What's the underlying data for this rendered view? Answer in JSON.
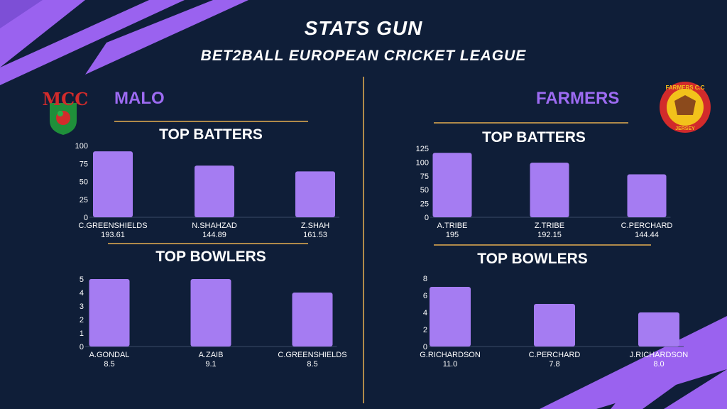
{
  "header": {
    "title": "STATS GUN",
    "subtitle": "BET2BALL EUROPEAN CRICKET LEAGUE"
  },
  "teams": [
    {
      "name": "MALO",
      "logo_text": "MCC"
    },
    {
      "name": "FARMERS",
      "logo_text_top": "FARMERS C.C",
      "logo_text_bottom": "JERSEY"
    }
  ],
  "colors": {
    "background": "#0f1e38",
    "bar": "#a57cf2",
    "accent": "#9d6bf2",
    "gold": "#b08a4a",
    "decor": "#9a62ef"
  },
  "chart_data": [
    {
      "type": "bar",
      "title": "TOP BATTERS",
      "team": "MALO",
      "categories": [
        "C.GREENSHIELDS",
        "N.SHAHZAD",
        "Z.SHAH"
      ],
      "values": [
        92,
        72,
        64
      ],
      "sublabels": [
        "193.61",
        "144.89",
        "161.53"
      ],
      "ylim": [
        0,
        100
      ],
      "yticks": [
        0,
        25,
        50,
        75,
        100
      ]
    },
    {
      "type": "bar",
      "title": "TOP BOWLERS",
      "team": "MALO",
      "categories": [
        "A.GONDAL",
        "A.ZAIB",
        "C.GREENSHIELDS"
      ],
      "values": [
        5,
        5,
        4
      ],
      "sublabels": [
        "8.5",
        "9.1",
        "8.5"
      ],
      "ylim": [
        0,
        5
      ],
      "yticks": [
        0,
        1,
        2,
        3,
        4,
        5
      ]
    },
    {
      "type": "bar",
      "title": "TOP BATTERS",
      "team": "FARMERS",
      "categories": [
        "A.TRIBE",
        "Z.TRIBE",
        "C.PERCHARD"
      ],
      "values": [
        117,
        99,
        78
      ],
      "sublabels": [
        "195",
        "192.15",
        "144.44"
      ],
      "ylim": [
        0,
        125
      ],
      "yticks": [
        0,
        25,
        50,
        75,
        100,
        125
      ]
    },
    {
      "type": "bar",
      "title": "TOP BOWLERS",
      "team": "FARMERS",
      "categories": [
        "G.RICHARDSON",
        "C.PERCHARD",
        "J.RICHARDSON"
      ],
      "values": [
        7,
        5,
        4
      ],
      "sublabels": [
        "11.0",
        "7.8",
        "8.0"
      ],
      "ylim": [
        0,
        8
      ],
      "yticks": [
        0,
        2,
        4,
        6,
        8
      ]
    }
  ]
}
